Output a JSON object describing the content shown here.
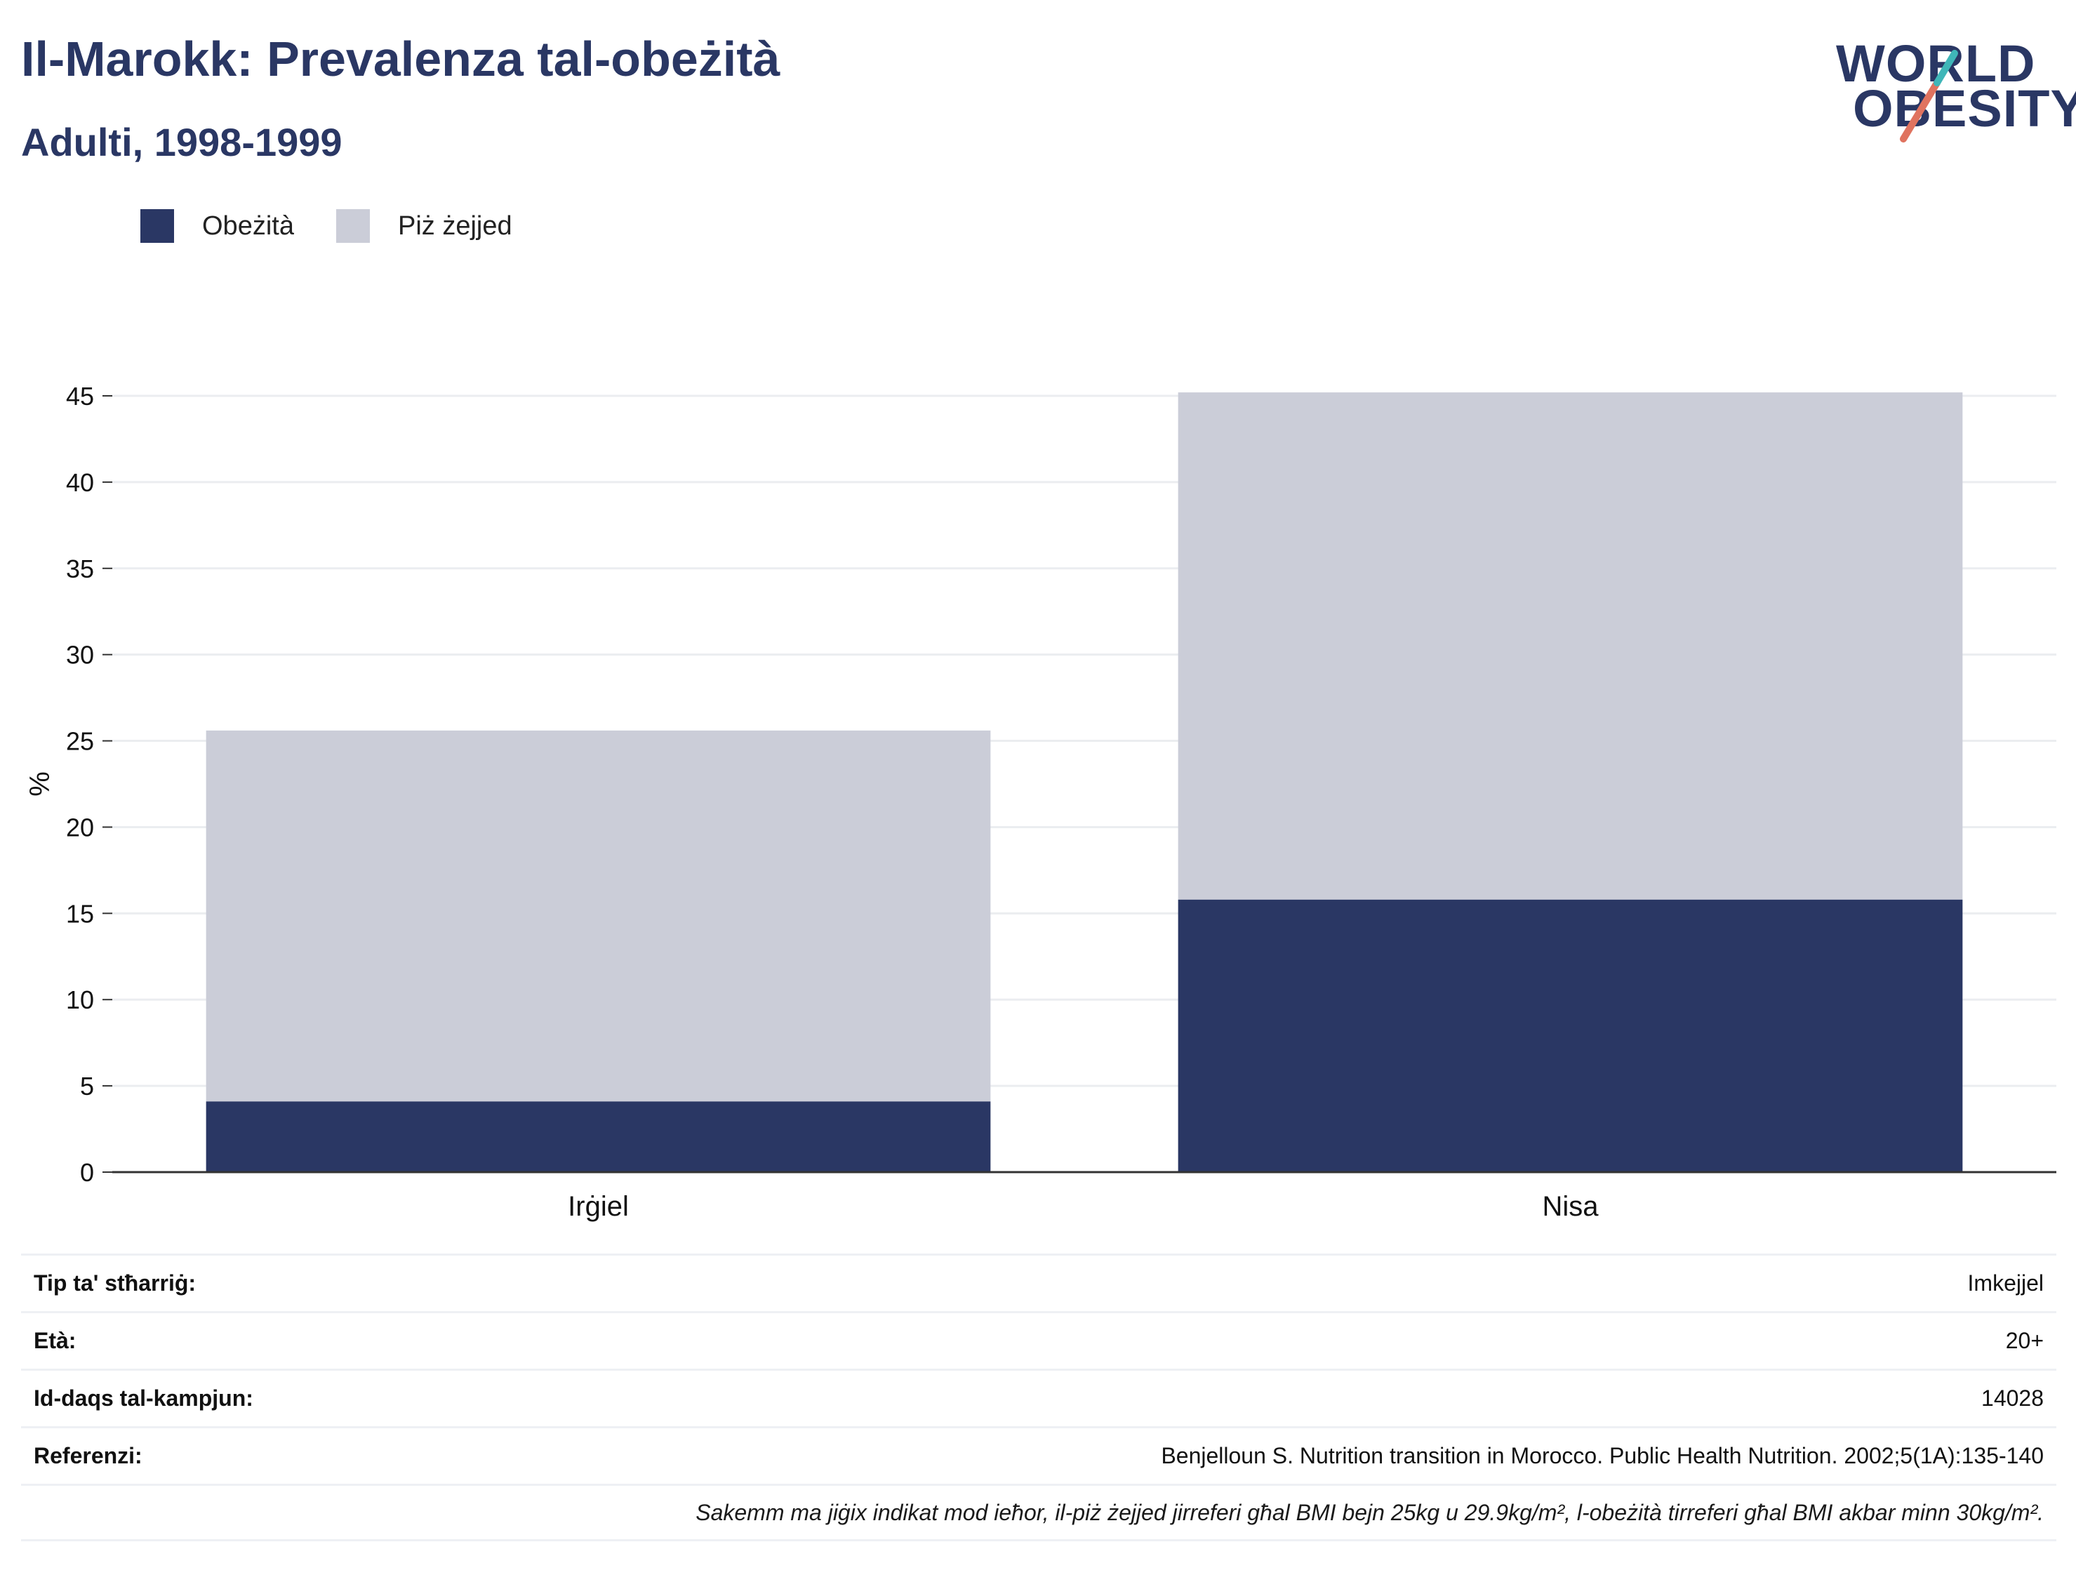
{
  "header": {
    "title": "Il-Marokk: Prevalenza tal-obeżità",
    "subtitle": "Adulti, 1998-1999"
  },
  "logo": {
    "line1": "WORLD",
    "line2": "OBESITY"
  },
  "colors": {
    "obesity": "#2a3764",
    "overweight": "#cbcdd8",
    "text": "#2a3764",
    "accent_teal": "#3fb6b8",
    "accent_red": "#e0735f"
  },
  "legend": [
    {
      "label": "Obeżità",
      "color": "#2a3764"
    },
    {
      "label": "Piż żejjed",
      "color": "#cbcdd8"
    }
  ],
  "chart_data": {
    "type": "bar",
    "stacked": true,
    "categories": [
      "Irġiel",
      "Nisa"
    ],
    "series": [
      {
        "name": "Obeżità",
        "values": [
          4.1,
          15.8
        ],
        "color": "#2a3764"
      },
      {
        "name": "Piż żejjed",
        "values": [
          21.5,
          29.4
        ],
        "color": "#cbcdd8"
      }
    ],
    "ylabel": "%",
    "ylim": [
      0,
      45
    ],
    "yticks": [
      0,
      5,
      10,
      15,
      20,
      25,
      30,
      35,
      40,
      45
    ],
    "grid": true,
    "legend_position": "top-left"
  },
  "info": [
    {
      "key": "Tip ta' stħarriġ:",
      "value": "Imkejjel"
    },
    {
      "key": "Età:",
      "value": "20+"
    },
    {
      "key": "Id-daqs tal-kampjun:",
      "value": "14028"
    },
    {
      "key": "Referenzi:",
      "value": "Benjelloun S. Nutrition transition in Morocco. Public Health Nutrition. 2002;5(1A):135-140"
    }
  ],
  "note": "Sakemm ma jiġix indikat mod ieħor, il-piż żejjed jirreferi għal BMI bejn 25kg u 29.9kg/m², l-obeżità tirreferi għal BMI akbar minn 30kg/m²."
}
